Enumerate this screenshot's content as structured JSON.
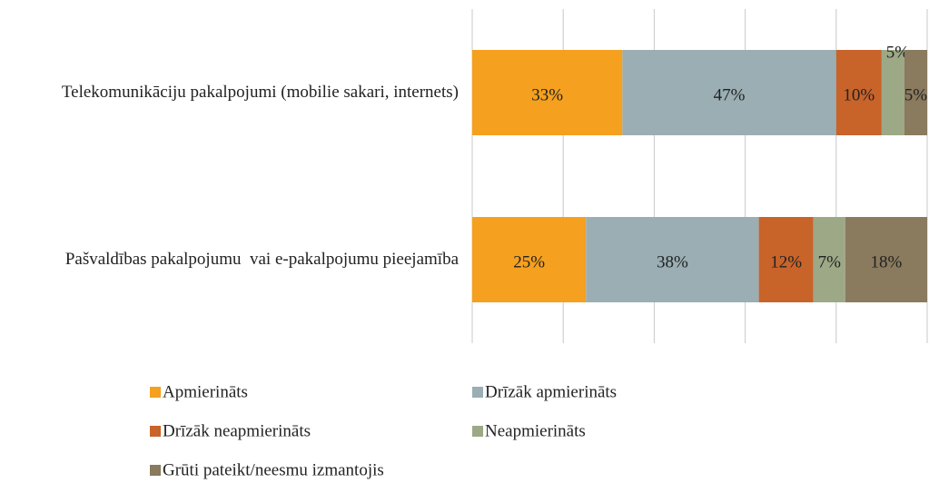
{
  "chart_data": {
    "type": "stacked-bar-horizontal",
    "categories": [
      "Telekomunikāciju pakalpojumi (mobilie sakari, internets)",
      "Pašvaldības pakalpojumu  vai e-pakalpojumu pieejamība"
    ],
    "series": [
      {
        "name": "Apmierināts",
        "color": "#f5a01f",
        "values": [
          33,
          25
        ],
        "value_labels": [
          "33%",
          "25%"
        ]
      },
      {
        "name": "Drīzāk apmierināts",
        "color": "#9aaeb3",
        "values": [
          47,
          38
        ],
        "value_labels": [
          "47%",
          "38%"
        ]
      },
      {
        "name": "Drīzāk neapmierināts",
        "color": "#c8632a",
        "values": [
          10,
          12
        ],
        "value_labels": [
          "10%",
          "12%"
        ]
      },
      {
        "name": "Neapmierināts",
        "color": "#9da886",
        "values": [
          5,
          7
        ],
        "value_labels": [
          "5%",
          "7%"
        ]
      },
      {
        "name": "Grūti pateikt/neesmu izmantojis",
        "color": "#8a7a5e",
        "values": [
          5,
          18
        ],
        "value_labels": [
          "5%",
          "18%"
        ]
      }
    ],
    "xlim": [
      0,
      100
    ],
    "xticks": [
      0,
      20,
      40,
      60,
      80,
      100
    ],
    "grid": true
  }
}
